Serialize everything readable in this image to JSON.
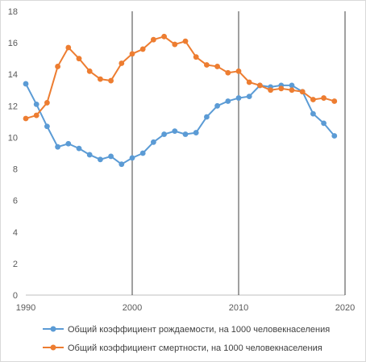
{
  "chart_data": {
    "type": "line",
    "title": "",
    "xlabel": "",
    "ylabel": "",
    "xlim": [
      1990,
      2020
    ],
    "ylim": [
      0,
      18
    ],
    "x_ticks": [
      "1990",
      "2000",
      "2010",
      "2020"
    ],
    "y_ticks": [
      "0",
      "2",
      "4",
      "6",
      "8",
      "10",
      "12",
      "14",
      "16",
      "18"
    ],
    "vertical_lines": [
      2000,
      2010,
      2020
    ],
    "grid": false,
    "legend_position": "bottom",
    "x": [
      1990,
      1991,
      1992,
      1993,
      1994,
      1995,
      1996,
      1997,
      1998,
      1999,
      2000,
      2001,
      2002,
      2003,
      2004,
      2005,
      2006,
      2007,
      2008,
      2009,
      2010,
      2011,
      2012,
      2013,
      2014,
      2015,
      2016,
      2017,
      2018,
      2019
    ],
    "series": [
      {
        "name": "Общий коэффициент рождаемости, на 1000 человекнаселения",
        "color": "#5b9bd5",
        "values": [
          13.4,
          12.1,
          10.7,
          9.4,
          9.6,
          9.3,
          8.9,
          8.6,
          8.8,
          8.3,
          8.7,
          9.0,
          9.7,
          10.2,
          10.4,
          10.2,
          10.3,
          11.3,
          12.0,
          12.3,
          12.5,
          12.6,
          13.3,
          13.2,
          13.3,
          13.3,
          12.9,
          11.5,
          10.9,
          10.1
        ]
      },
      {
        "name": "Общий коэффициент смертности, на 1000 человекнаселения",
        "color": "#ed7d31",
        "values": [
          11.2,
          11.4,
          12.2,
          14.5,
          15.7,
          15.0,
          14.2,
          13.7,
          13.6,
          14.7,
          15.3,
          15.6,
          16.2,
          16.4,
          15.9,
          16.1,
          15.1,
          14.6,
          14.5,
          14.1,
          14.2,
          13.5,
          13.3,
          13.0,
          13.1,
          13.0,
          12.9,
          12.4,
          12.5,
          12.3
        ]
      }
    ]
  }
}
